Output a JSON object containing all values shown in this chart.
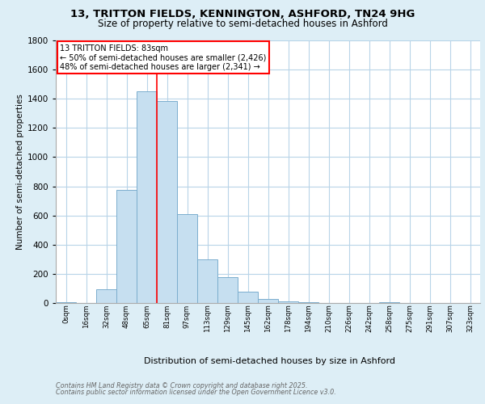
{
  "title_line1": "13, TRITTON FIELDS, KENNINGTON, ASHFORD, TN24 9HG",
  "title_line2": "Size of property relative to semi-detached houses in Ashford",
  "xlabel": "Distribution of semi-detached houses by size in Ashford",
  "ylabel": "Number of semi-detached properties",
  "bin_labels": [
    "0sqm",
    "16sqm",
    "32sqm",
    "48sqm",
    "65sqm",
    "81sqm",
    "97sqm",
    "113sqm",
    "129sqm",
    "145sqm",
    "162sqm",
    "178sqm",
    "194sqm",
    "210sqm",
    "226sqm",
    "242sqm",
    "258sqm",
    "275sqm",
    "291sqm",
    "307sqm",
    "323sqm"
  ],
  "bar_values": [
    3,
    2,
    95,
    775,
    1450,
    1385,
    610,
    300,
    175,
    80,
    25,
    10,
    5,
    0,
    0,
    0,
    5,
    0,
    0,
    0,
    0
  ],
  "bar_color": "#c6dff0",
  "bar_edge_color": "#7baece",
  "property_line_x": 5,
  "property_size": 83,
  "property_line_label": "13 TRITTON FIELDS: 83sqm",
  "annotation_line2": "← 50% of semi-detached houses are smaller (2,426)",
  "annotation_line3": "48% of semi-detached houses are larger (2,341) →",
  "ylim": [
    0,
    1800
  ],
  "yticks": [
    0,
    200,
    400,
    600,
    800,
    1000,
    1200,
    1400,
    1600,
    1800
  ],
  "footer_line1": "Contains HM Land Registry data © Crown copyright and database right 2025.",
  "footer_line2": "Contains public sector information licensed under the Open Government Licence v3.0.",
  "background_color": "#ddeef6",
  "plot_bg_color": "#ffffff",
  "grid_color": "#b8d4e8"
}
